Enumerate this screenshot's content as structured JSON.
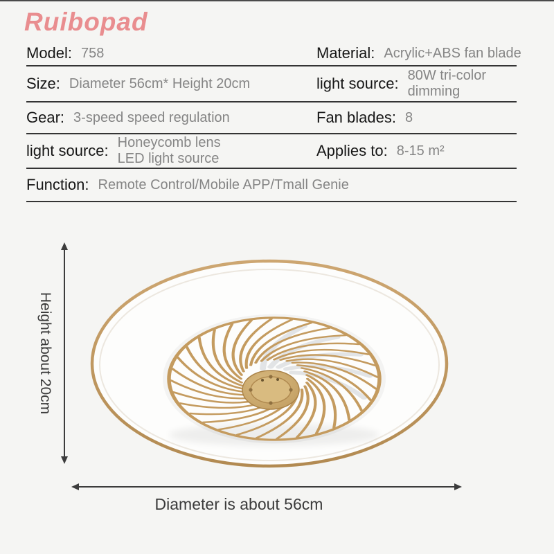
{
  "brand": "Ruibopad",
  "spec": {
    "rows": [
      {
        "left": {
          "label": "Model:",
          "value": "758"
        },
        "right": {
          "label": "Material:",
          "value": "Acrylic+ABS fan blade"
        }
      },
      {
        "left": {
          "label": "Size:",
          "value": "Diameter 56cm* Height 20cm"
        },
        "right": {
          "label": "light source:",
          "value_line1": "80W tri-color",
          "value_line2": "dimming"
        }
      },
      {
        "left": {
          "label": "Gear:",
          "value": "3-speed speed regulation"
        },
        "right": {
          "label": "Fan blades:",
          "value": "8"
        }
      },
      {
        "left": {
          "label": "light source:",
          "value_line1": "Honeycomb lens",
          "value_line2": "LED light source"
        },
        "right": {
          "label": "Applies to:",
          "value": "8-15 m²"
        }
      },
      {
        "full": {
          "label": "Function:",
          "value": "Remote Control/Mobile APP/Tmall Genie"
        }
      }
    ]
  },
  "dimensions": {
    "height_label": "Height about 20cm",
    "diameter_label": "Diameter is about 56cm"
  },
  "product": {
    "description": "gold ceiling fan light seen from below",
    "fan_blade_count_visible_cage_spokes": 32
  },
  "colors": {
    "brand_pink": "#e98d8f",
    "gold": "#c49b5f",
    "gold_dark": "#ab8449",
    "background": "#f5f5f3",
    "label_text": "#161616",
    "value_text": "#858585",
    "line": "#343434"
  }
}
